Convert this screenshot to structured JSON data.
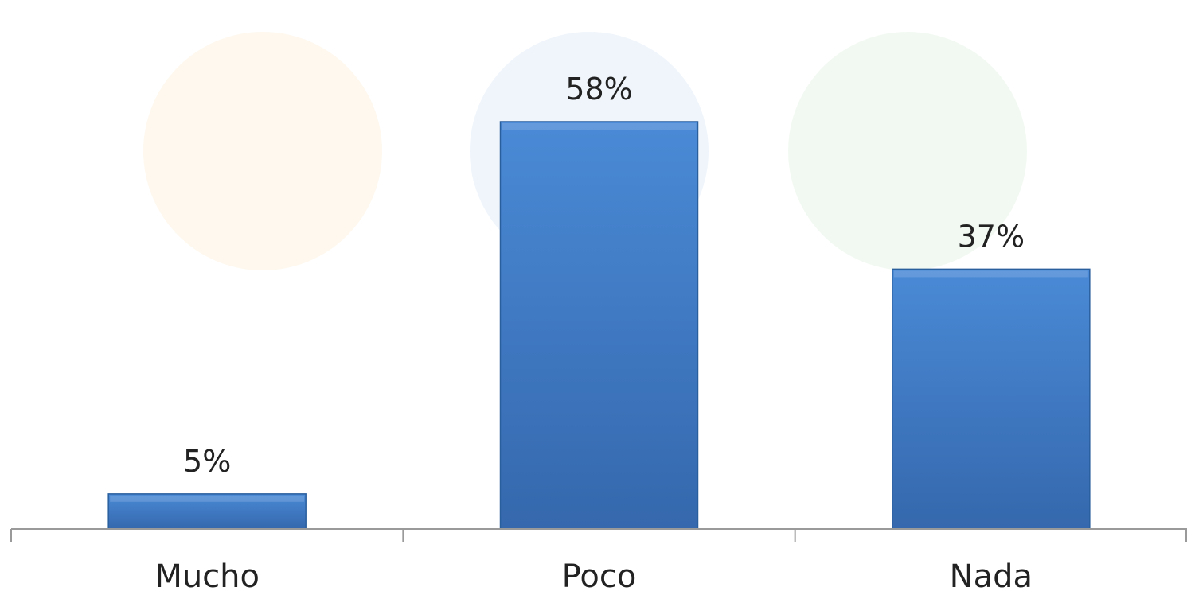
{
  "chart_data": {
    "type": "bar",
    "categories": [
      "Mucho",
      "Poco",
      "Nada"
    ],
    "values": [
      5,
      58,
      37
    ],
    "data_labels": [
      "5%",
      "58%",
      "37%"
    ],
    "title": "",
    "xlabel": "",
    "ylabel": "",
    "ylim": [
      0,
      58
    ],
    "grid": false,
    "legend": "none",
    "colors": {
      "bar": "#3b78c4",
      "bar_top": "#4a8ad6",
      "bar_edge": "#2a5f9e",
      "axis": "#9a9a9a",
      "text": "#222222"
    }
  }
}
